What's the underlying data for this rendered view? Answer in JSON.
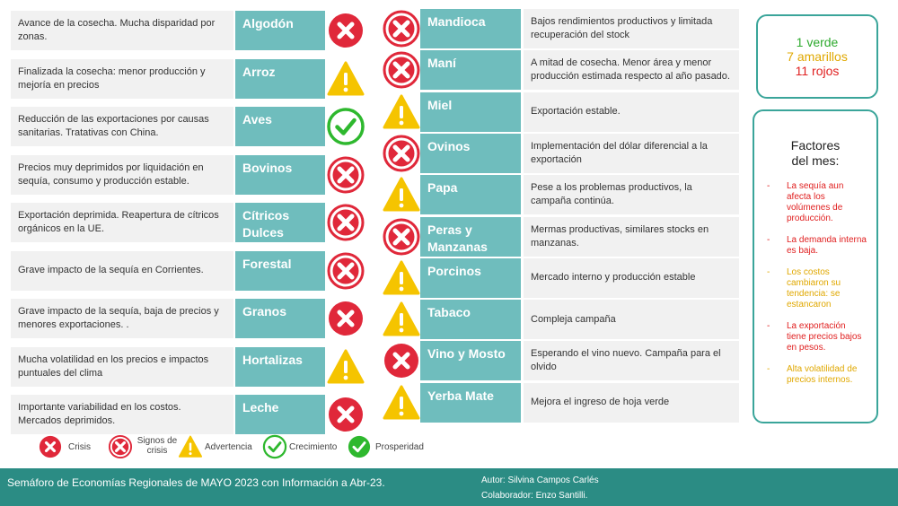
{
  "left_rows": [
    {
      "desc": "Avance de la cosecha. Mucha disparidad por zonas.",
      "name": [
        "Algodón"
      ],
      "status": "crisis"
    },
    {
      "desc": "Finalizada la cosecha: menor producción y mejoría en precios",
      "name": [
        "Arroz"
      ],
      "status": "advertencia"
    },
    {
      "desc": "Reducción de las exportaciones por causas sanitarias. Tratativas con China.",
      "name": [
        "Aves"
      ],
      "status": "crecimiento"
    },
    {
      "desc": "Precios muy deprimidos por liquidación en sequía, consumo y producción estable.",
      "name": [
        "Bovinos"
      ],
      "status": "signos"
    },
    {
      "desc": "Exportación deprimida. Reapertura de cítricos orgánicos en la UE.",
      "name": [
        "Cítricos",
        "Dulces"
      ],
      "status": "signos"
    },
    {
      "desc": "Grave impacto de la sequía en Corrientes.",
      "name": [
        "Forestal"
      ],
      "status": "signos"
    },
    {
      "desc": "Grave impacto de la sequía, baja de precios y menores exportaciones. .",
      "name": [
        "Granos"
      ],
      "status": "crisis"
    },
    {
      "desc": "Mucha volatilidad en los precios e impactos puntuales del clima",
      "name": [
        "Hortalizas"
      ],
      "status": "advertencia"
    },
    {
      "desc": "Importante variabilidad en los costos. Mercados deprimidos.",
      "name": [
        "Leche"
      ],
      "status": "crisis"
    }
  ],
  "right_rows": [
    {
      "desc": "Bajos rendimientos productivos y limitada recuperación del stock",
      "name": [
        "Mandioca"
      ],
      "status": "signos"
    },
    {
      "desc": "A mitad de cosecha. Menor área y menor producción estimada respecto al año pasado.",
      "name": [
        "Maní"
      ],
      "status": "signos"
    },
    {
      "desc": "Exportación estable.",
      "name": [
        "Miel"
      ],
      "status": "advertencia"
    },
    {
      "desc": "Implementación del dólar diferencial a la exportación",
      "name": [
        "Ovinos"
      ],
      "status": "signos"
    },
    {
      "desc": "Pese a los problemas productivos, la campaña continúa.",
      "name": [
        "Papa"
      ],
      "status": "advertencia"
    },
    {
      "desc": "Mermas productivas, similares stocks en manzanas.",
      "name": [
        "Peras y",
        "Manzanas"
      ],
      "status": "signos"
    },
    {
      "desc": "Mercado interno y producción estable",
      "name": [
        "Porcinos"
      ],
      "status": "advertencia"
    },
    {
      "desc": "Compleja campaña",
      "name": [
        "Tabaco"
      ],
      "status": "advertencia"
    },
    {
      "desc": "Esperando el vino nuevo. Campaña para el olvido",
      "name": [
        "Vino y Mosto"
      ],
      "status": "crisis"
    },
    {
      "desc": "Mejora el ingreso de hoja verde",
      "name": [
        "Yerba Mate"
      ],
      "status": "advertencia"
    }
  ],
  "summary": {
    "green": "1 verde",
    "yellow": "7 amarillos",
    "red": "11 rojos"
  },
  "factors": {
    "title_line1": "Factores",
    "title_line2": "del mes:",
    "items": [
      {
        "text": "La sequía aun afecta los volúmenes de producción.",
        "color": "#e02020"
      },
      {
        "text": "La demanda interna es baja.",
        "color": "#e02020"
      },
      {
        "text": "Los costos cambiaron su tendencia: se estancaron",
        "color": "#e0a800"
      },
      {
        "text": "La exportación tiene precios bajos en pesos.",
        "color": "#e02020"
      },
      {
        "text": "Alta volatilidad de precios internos.",
        "color": "#e0a800"
      }
    ]
  },
  "legend": {
    "crisis": "Crisis",
    "signos_line1": "Signos de",
    "signos_line2": "crisis",
    "advertencia": "Advertencia",
    "crecimiento": "Crecimiento",
    "prosperidad": "Prosperidad"
  },
  "footer": {
    "title": "Semáforo de Economías Regionales de MAYO 2023 con Información a Abr-23.",
    "author": "Autor:  Silvina Campos Carlés",
    "collaborator": "Colaborador:  Enzo Santilli."
  },
  "colors": {
    "red": "#e0283a",
    "yellow": "#f5c400",
    "green": "#2eb82e",
    "teal": "#6fbdbd",
    "footer": "#2b8c84"
  }
}
